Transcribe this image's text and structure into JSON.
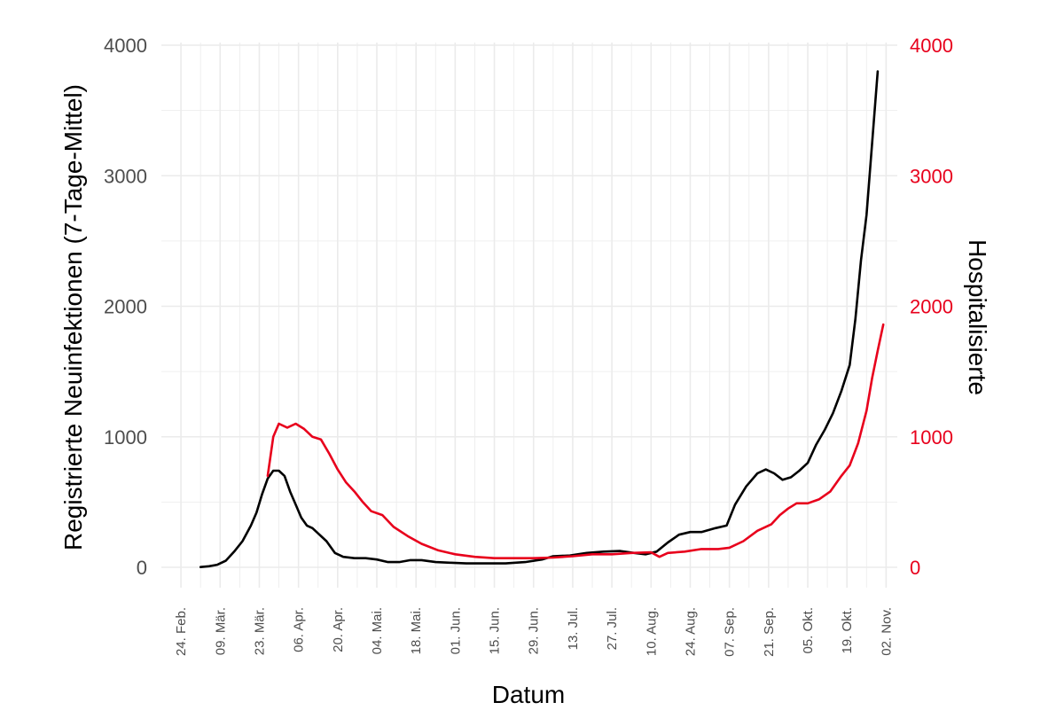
{
  "chart_data": {
    "type": "line",
    "title": "",
    "xlabel": "Datum",
    "ylabel": "Registrierte Neuinfektionen (7-Tage-Mittel)",
    "y2label": "Hospitalisierte",
    "ylim": [
      0,
      4000
    ],
    "y2lim": [
      0,
      4000
    ],
    "yticks": [
      "0",
      "1000",
      "2000",
      "3000",
      "4000"
    ],
    "y2ticks": [
      "0",
      "1000",
      "2000",
      "3000",
      "4000"
    ],
    "y_tick_values": [
      0,
      1000,
      2000,
      3000,
      4000
    ],
    "xlim": [
      "2020-02-17",
      "2020-11-06"
    ],
    "xticks": [
      "24. Feb.",
      "09. Mär.",
      "23. Mär.",
      "06. Apr.",
      "20. Apr.",
      "04. Mai.",
      "18. Mai.",
      "01. Jun.",
      "15. Jun.",
      "29. Jun.",
      "13. Jul.",
      "27. Jul.",
      "10. Aug.",
      "24. Aug.",
      "07. Sep.",
      "21. Sep.",
      "05. Okt.",
      "19. Okt.",
      "02. Nov."
    ],
    "xtick_dates": [
      "2020-02-24",
      "2020-03-09",
      "2020-03-23",
      "2020-04-06",
      "2020-04-20",
      "2020-05-04",
      "2020-05-18",
      "2020-06-01",
      "2020-06-15",
      "2020-06-29",
      "2020-07-13",
      "2020-07-27",
      "2020-08-10",
      "2020-08-24",
      "2020-09-07",
      "2020-09-21",
      "2020-10-05",
      "2020-10-19",
      "2020-11-02"
    ],
    "grid": true,
    "legend": "none",
    "colors": {
      "axis_right": "#e8001c",
      "grid": "#ebebeb",
      "tick_text": "#4d4d4d"
    },
    "series": [
      {
        "axis": "left",
        "color": "#000000",
        "points": [
          [
            "2020-03-02",
            2
          ],
          [
            "2020-03-05",
            8
          ],
          [
            "2020-03-08",
            20
          ],
          [
            "2020-03-11",
            50
          ],
          [
            "2020-03-14",
            120
          ],
          [
            "2020-03-17",
            200
          ],
          [
            "2020-03-20",
            320
          ],
          [
            "2020-03-22",
            420
          ],
          [
            "2020-03-24",
            560
          ],
          [
            "2020-03-26",
            680
          ],
          [
            "2020-03-28",
            740
          ],
          [
            "2020-03-30",
            740
          ],
          [
            "2020-04-01",
            700
          ],
          [
            "2020-04-03",
            580
          ],
          [
            "2020-04-05",
            480
          ],
          [
            "2020-04-07",
            380
          ],
          [
            "2020-04-09",
            320
          ],
          [
            "2020-04-11",
            300
          ],
          [
            "2020-04-13",
            260
          ],
          [
            "2020-04-16",
            200
          ],
          [
            "2020-04-19",
            110
          ],
          [
            "2020-04-22",
            80
          ],
          [
            "2020-04-26",
            70
          ],
          [
            "2020-04-30",
            70
          ],
          [
            "2020-05-04",
            60
          ],
          [
            "2020-05-08",
            40
          ],
          [
            "2020-05-12",
            40
          ],
          [
            "2020-05-16",
            55
          ],
          [
            "2020-05-20",
            55
          ],
          [
            "2020-05-25",
            40
          ],
          [
            "2020-05-30",
            35
          ],
          [
            "2020-06-05",
            30
          ],
          [
            "2020-06-12",
            30
          ],
          [
            "2020-06-19",
            30
          ],
          [
            "2020-06-26",
            40
          ],
          [
            "2020-07-02",
            60
          ],
          [
            "2020-07-06",
            85
          ],
          [
            "2020-07-12",
            90
          ],
          [
            "2020-07-18",
            110
          ],
          [
            "2020-07-24",
            120
          ],
          [
            "2020-07-30",
            125
          ],
          [
            "2020-08-04",
            110
          ],
          [
            "2020-08-08",
            100
          ],
          [
            "2020-08-12",
            120
          ],
          [
            "2020-08-16",
            190
          ],
          [
            "2020-08-20",
            250
          ],
          [
            "2020-08-24",
            270
          ],
          [
            "2020-08-28",
            270
          ],
          [
            "2020-09-02",
            300
          ],
          [
            "2020-09-06",
            320
          ],
          [
            "2020-09-09",
            480
          ],
          [
            "2020-09-13",
            620
          ],
          [
            "2020-09-17",
            720
          ],
          [
            "2020-09-20",
            750
          ],
          [
            "2020-09-23",
            720
          ],
          [
            "2020-09-26",
            670
          ],
          [
            "2020-09-29",
            690
          ],
          [
            "2020-10-02",
            740
          ],
          [
            "2020-10-05",
            800
          ],
          [
            "2020-10-08",
            940
          ],
          [
            "2020-10-11",
            1050
          ],
          [
            "2020-10-14",
            1180
          ],
          [
            "2020-10-17",
            1350
          ],
          [
            "2020-10-20",
            1550
          ],
          [
            "2020-10-22",
            1900
          ],
          [
            "2020-10-24",
            2350
          ],
          [
            "2020-10-26",
            2700
          ],
          [
            "2020-10-28",
            3250
          ],
          [
            "2020-10-30",
            3800
          ]
        ]
      },
      {
        "axis": "right",
        "color": "#e8001c",
        "points": [
          [
            "2020-03-26",
            700
          ],
          [
            "2020-03-28",
            1000
          ],
          [
            "2020-03-30",
            1100
          ],
          [
            "2020-04-02",
            1070
          ],
          [
            "2020-04-05",
            1100
          ],
          [
            "2020-04-08",
            1060
          ],
          [
            "2020-04-11",
            1000
          ],
          [
            "2020-04-14",
            980
          ],
          [
            "2020-04-17",
            870
          ],
          [
            "2020-04-20",
            750
          ],
          [
            "2020-04-23",
            650
          ],
          [
            "2020-04-26",
            580
          ],
          [
            "2020-04-29",
            500
          ],
          [
            "2020-05-02",
            430
          ],
          [
            "2020-05-06",
            400
          ],
          [
            "2020-05-10",
            310
          ],
          [
            "2020-05-15",
            240
          ],
          [
            "2020-05-20",
            180
          ],
          [
            "2020-05-26",
            130
          ],
          [
            "2020-06-01",
            100
          ],
          [
            "2020-06-08",
            80
          ],
          [
            "2020-06-15",
            70
          ],
          [
            "2020-06-22",
            70
          ],
          [
            "2020-06-29",
            70
          ],
          [
            "2020-07-06",
            75
          ],
          [
            "2020-07-13",
            85
          ],
          [
            "2020-07-20",
            100
          ],
          [
            "2020-07-27",
            100
          ],
          [
            "2020-08-03",
            110
          ],
          [
            "2020-08-10",
            115
          ],
          [
            "2020-08-13",
            80
          ],
          [
            "2020-08-16",
            110
          ],
          [
            "2020-08-22",
            120
          ],
          [
            "2020-08-28",
            140
          ],
          [
            "2020-09-03",
            140
          ],
          [
            "2020-09-07",
            150
          ],
          [
            "2020-09-12",
            200
          ],
          [
            "2020-09-17",
            280
          ],
          [
            "2020-09-22",
            330
          ],
          [
            "2020-09-25",
            400
          ],
          [
            "2020-09-28",
            450
          ],
          [
            "2020-10-01",
            490
          ],
          [
            "2020-10-05",
            490
          ],
          [
            "2020-10-09",
            520
          ],
          [
            "2020-10-13",
            580
          ],
          [
            "2020-10-17",
            700
          ],
          [
            "2020-10-20",
            780
          ],
          [
            "2020-10-23",
            950
          ],
          [
            "2020-10-26",
            1200
          ],
          [
            "2020-10-28",
            1450
          ],
          [
            "2020-10-30",
            1660
          ],
          [
            "2020-11-01",
            1860
          ]
        ]
      }
    ]
  }
}
